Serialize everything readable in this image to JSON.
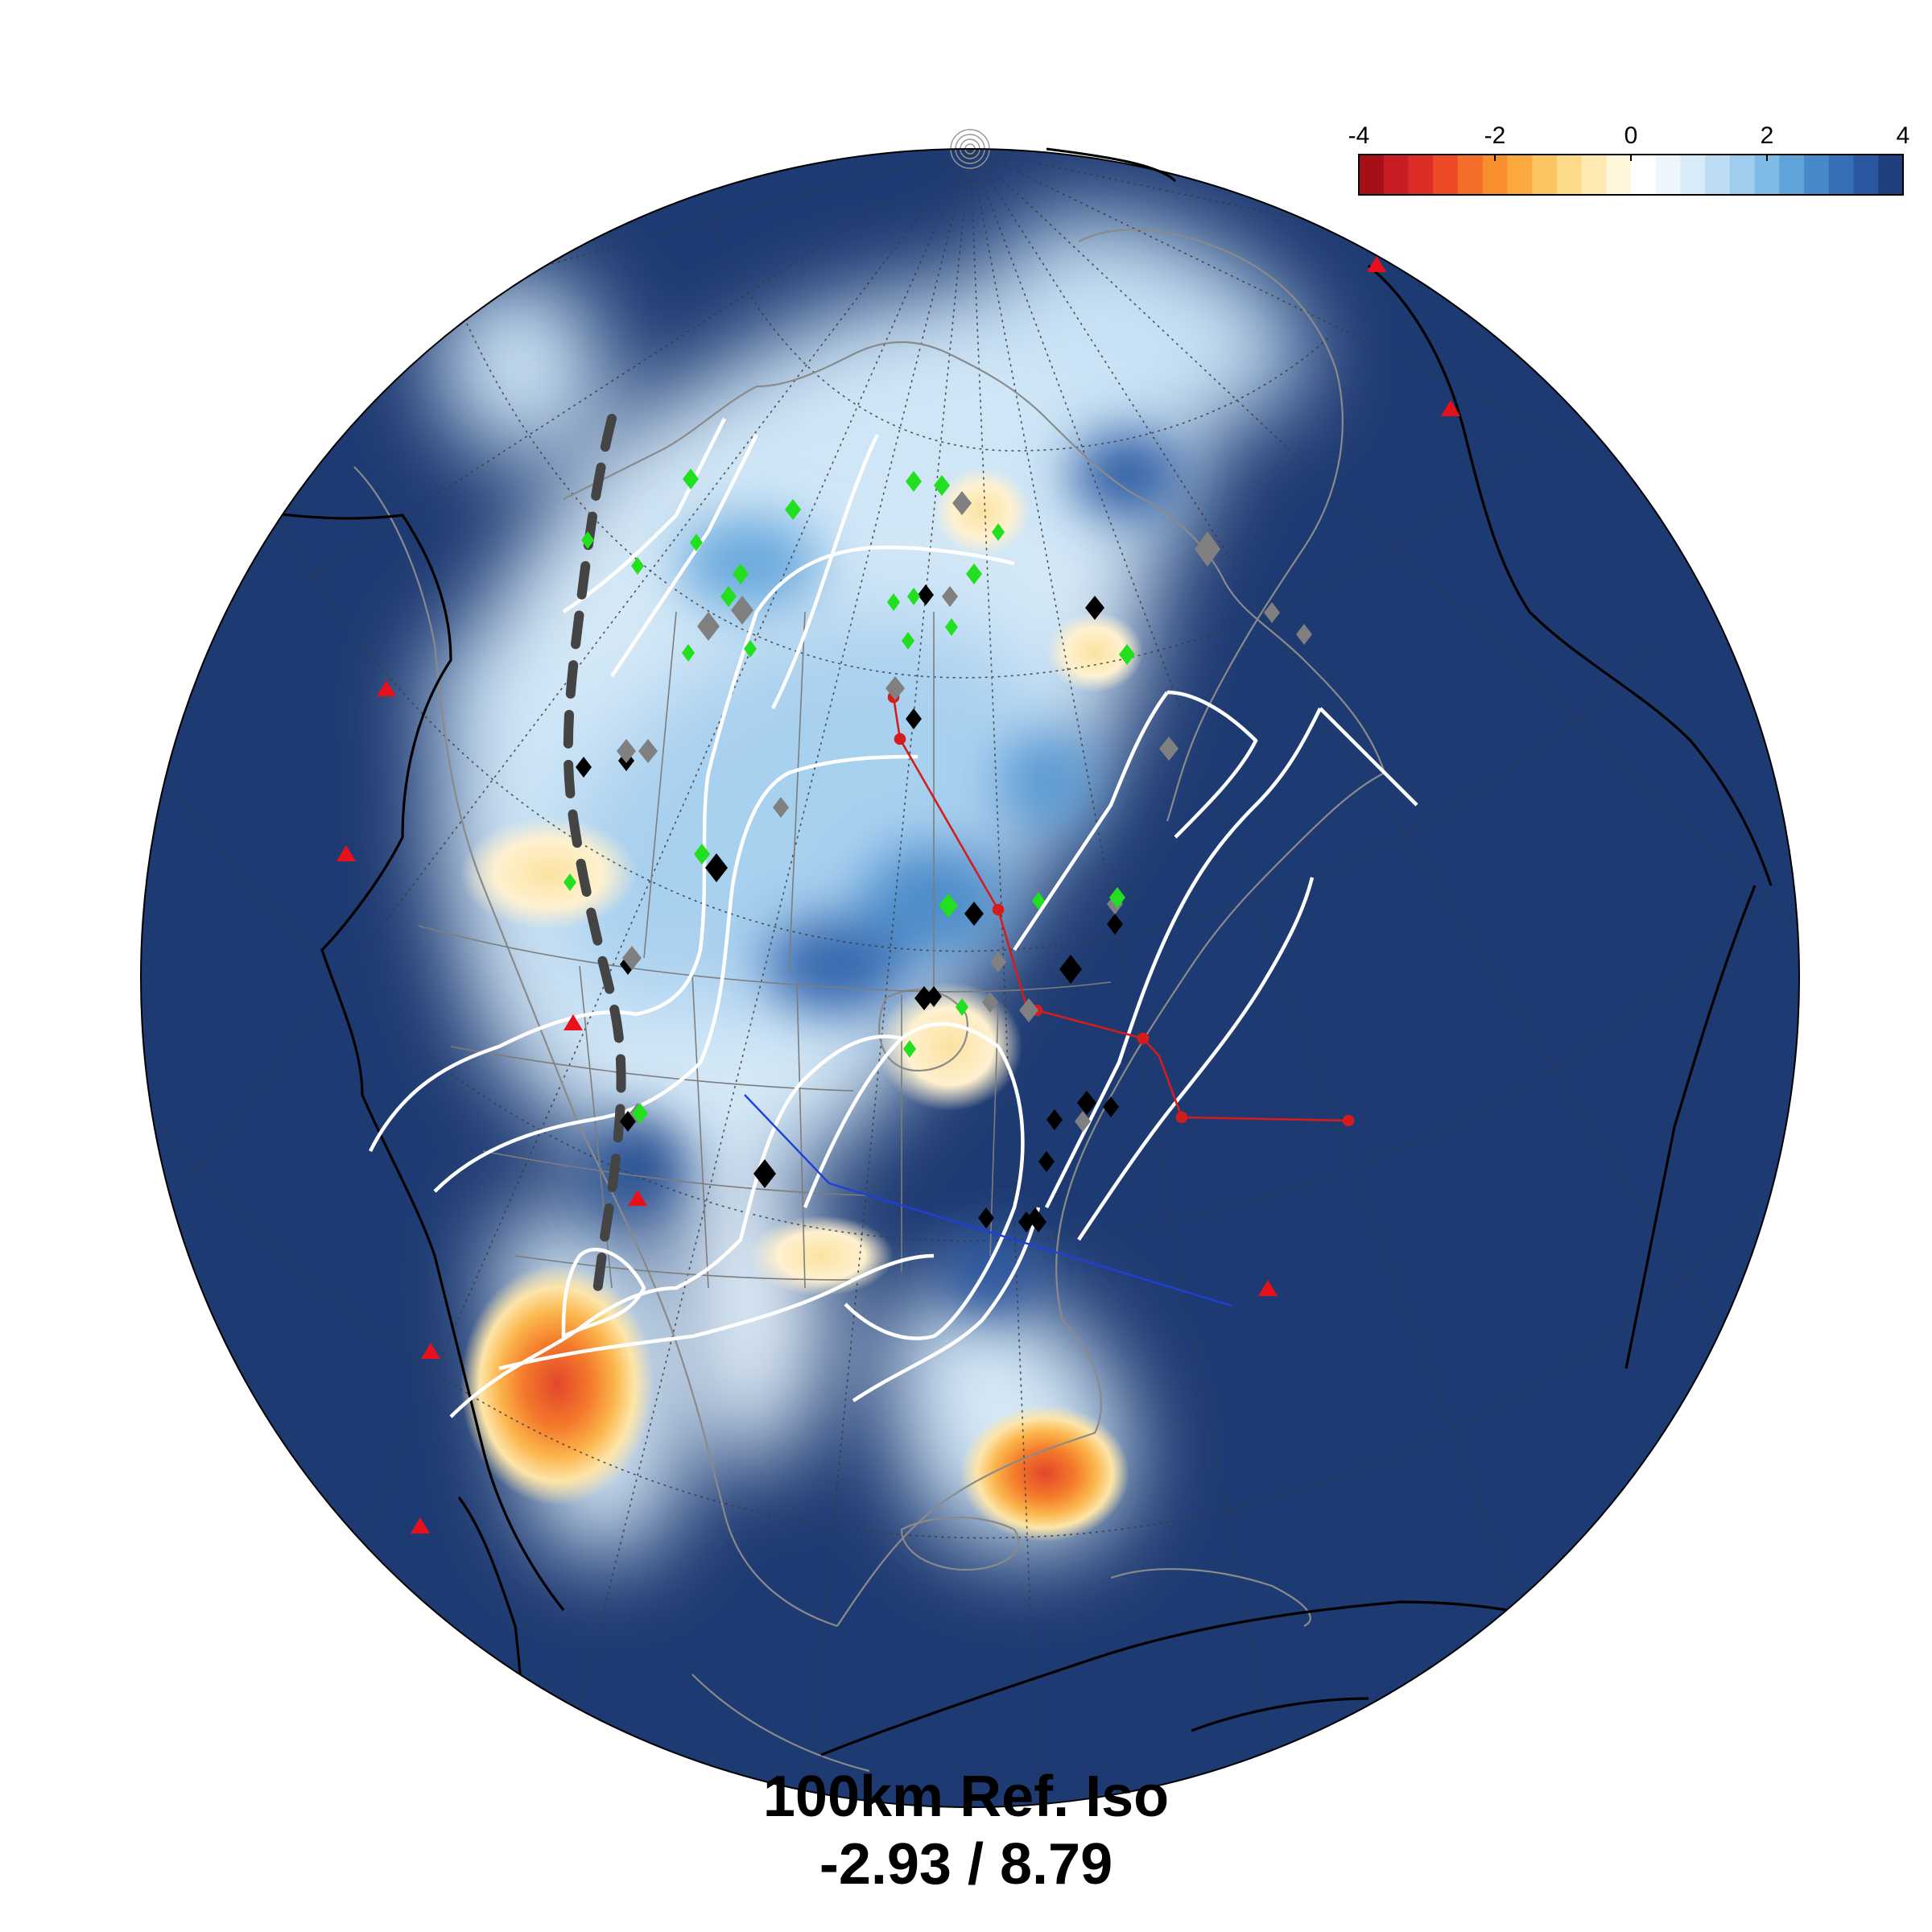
{
  "caption": {
    "line1": "100km  Ref. Iso",
    "line2": "-2.93 / 8.79"
  },
  "colorbar": {
    "ticks": [
      "-4",
      "-2",
      "0",
      "2",
      "4"
    ],
    "tick_values": [
      -4,
      -2,
      0,
      2,
      4
    ],
    "range": [
      -4,
      4
    ],
    "steps": 22,
    "colors": [
      "#a50f15",
      "#c81d25",
      "#de2d26",
      "#ef4a28",
      "#f46d29",
      "#f88e2d",
      "#fba83f",
      "#fcc460",
      "#fdd98a",
      "#fee9b3",
      "#fff6dc",
      "#ffffff",
      "#eef6fc",
      "#d7ebf8",
      "#bcdcf3",
      "#9ecdee",
      "#7fbbe6",
      "#5ea3d9",
      "#4689c9",
      "#356fb6",
      "#2a57a0",
      "#1f3f7f"
    ]
  },
  "map": {
    "ocean_color": "#1e3a72",
    "high_color": "#1f3f7f",
    "low_color": "#e8512a"
  },
  "legend_symbols": {
    "volcano": "red-triangle",
    "kimberlite_green": "green-diamond",
    "kimberlite_black": "black-diamond",
    "kimberlite_gray": "gray-diamond"
  }
}
